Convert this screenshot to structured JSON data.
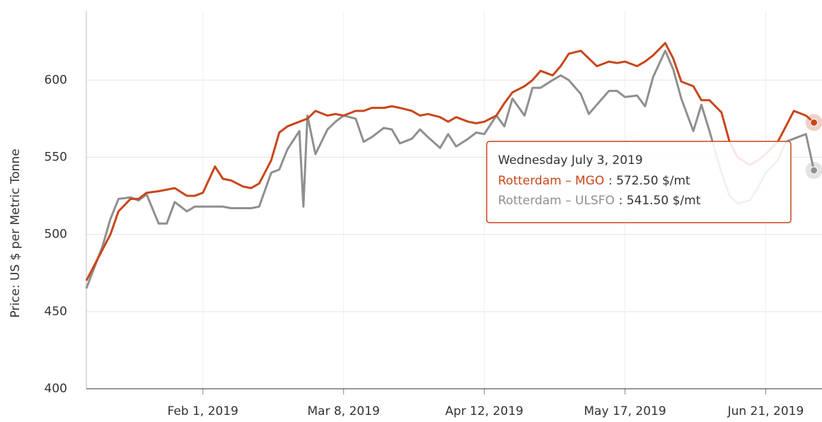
{
  "chart_data": {
    "type": "line",
    "y_label": "Price: US $ per Metric Tonne",
    "x": [
      "2019-01-03",
      "2019-01-07",
      "2019-01-09",
      "2019-01-11",
      "2019-01-14",
      "2019-01-16",
      "2019-01-18",
      "2019-01-21",
      "2019-01-23",
      "2019-01-25",
      "2019-01-28",
      "2019-01-30",
      "2019-02-01",
      "2019-02-04",
      "2019-02-06",
      "2019-02-08",
      "2019-02-11",
      "2019-02-13",
      "2019-02-15",
      "2019-02-18",
      "2019-02-20",
      "2019-02-22",
      "2019-02-25",
      "2019-02-26",
      "2019-02-27",
      "2019-03-01",
      "2019-03-04",
      "2019-03-06",
      "2019-03-08",
      "2019-03-11",
      "2019-03-13",
      "2019-03-15",
      "2019-03-18",
      "2019-03-20",
      "2019-03-22",
      "2019-03-25",
      "2019-03-27",
      "2019-03-29",
      "2019-04-01",
      "2019-04-03",
      "2019-04-05",
      "2019-04-08",
      "2019-04-10",
      "2019-04-12",
      "2019-04-15",
      "2019-04-17",
      "2019-04-19",
      "2019-04-22",
      "2019-04-24",
      "2019-04-26",
      "2019-04-29",
      "2019-05-01",
      "2019-05-03",
      "2019-05-06",
      "2019-05-08",
      "2019-05-10",
      "2019-05-13",
      "2019-05-15",
      "2019-05-17",
      "2019-05-20",
      "2019-05-22",
      "2019-05-24",
      "2019-05-27",
      "2019-05-29",
      "2019-05-31",
      "2019-06-03",
      "2019-06-05",
      "2019-06-07",
      "2019-06-10",
      "2019-06-12",
      "2019-06-14",
      "2019-06-17",
      "2019-06-19",
      "2019-06-21",
      "2019-06-24",
      "2019-06-26",
      "2019-06-28",
      "2019-07-01",
      "2019-07-03"
    ],
    "series": [
      {
        "name": "Rotterdam – MGO",
        "color": "#c8461b",
        "values": [
          470,
          490,
          500,
          515,
          523,
          523,
          527,
          528,
          529,
          530,
          525,
          525,
          527,
          544,
          536,
          535,
          531,
          530,
          533,
          548,
          566,
          570,
          573,
          574,
          575,
          580,
          577,
          578,
          577,
          580,
          580,
          582,
          582,
          583,
          582,
          580,
          577,
          578,
          576,
          573,
          576,
          573,
          572,
          573,
          577,
          585,
          592,
          596,
          600,
          606,
          603,
          609,
          617,
          619,
          614,
          609,
          612,
          611,
          612,
          609,
          612,
          616,
          624,
          614,
          599,
          596,
          587,
          587,
          579,
          560,
          550,
          545,
          548,
          552,
          560,
          570,
          580,
          577,
          572.5
        ]
      },
      {
        "name": "Rotterdam – ULSFO",
        "color": "#8f8f8f",
        "values": [
          465,
          492,
          510,
          523,
          524,
          522,
          526,
          507,
          507,
          521,
          515,
          518,
          518,
          518,
          518,
          517,
          517,
          517,
          518,
          540,
          542,
          555,
          567,
          518,
          577,
          552,
          568,
          573,
          577,
          575,
          560,
          563,
          569,
          568,
          559,
          562,
          568,
          563,
          556,
          565,
          557,
          562,
          566,
          565,
          577,
          570,
          588,
          577,
          595,
          595,
          600,
          603,
          600,
          591,
          578,
          584,
          593,
          593,
          589,
          590,
          583,
          602,
          619,
          607,
          588,
          567,
          584,
          567,
          540,
          525,
          520,
          522,
          530,
          540,
          548,
          560,
          562,
          565,
          541.5
        ]
      }
    ],
    "xlim": [
      "2019-01-03",
      "2019-07-05"
    ],
    "xticks": [
      {
        "value": "2019-02-01",
        "label": "Feb 1, 2019"
      },
      {
        "value": "2019-03-08",
        "label": "Mar 8, 2019"
      },
      {
        "value": "2019-04-12",
        "label": "Apr 12, 2019"
      },
      {
        "value": "2019-05-17",
        "label": "May 17, 2019"
      },
      {
        "value": "2019-06-21",
        "label": "Jun 21, 2019"
      }
    ],
    "ylim": [
      400,
      645
    ],
    "yticks": [
      400,
      450,
      500,
      550,
      600
    ],
    "grid": true,
    "tooltip": {
      "title": "Wednesday July 3, 2019",
      "values": [
        572.5,
        541.5
      ],
      "value_labels": [
        ": 572.50 $/mt",
        ": 541.50 $/mt"
      ]
    }
  }
}
